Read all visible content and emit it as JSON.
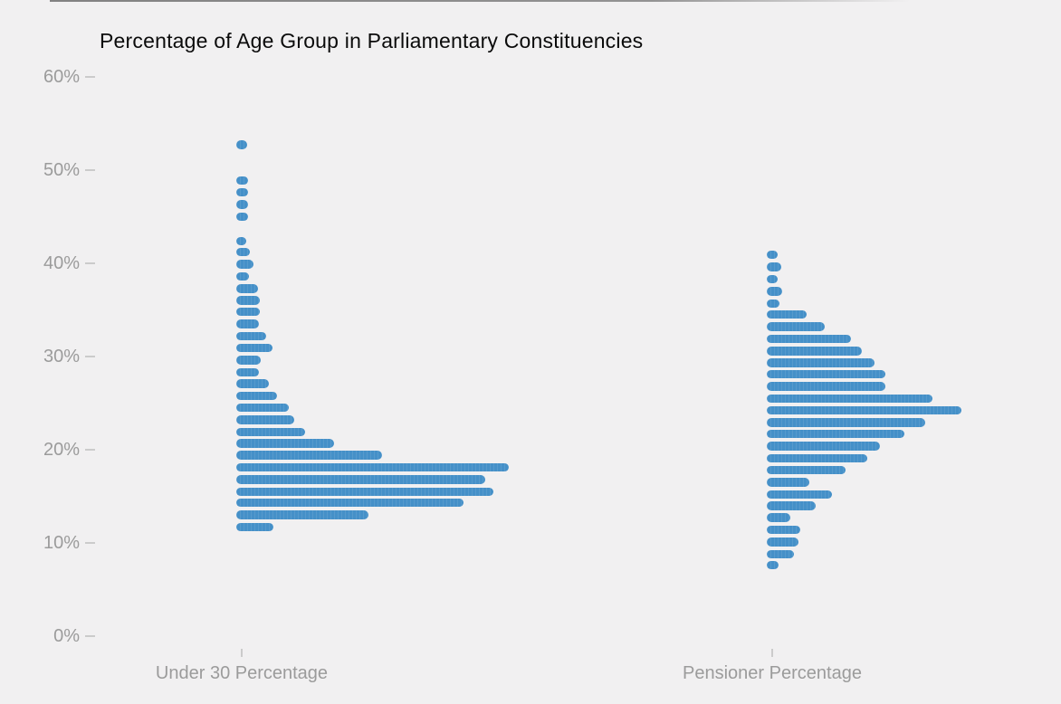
{
  "chart_data": {
    "type": "bar",
    "subtype": "one-sided horizontal tally histogram (distribution per column)",
    "title": "Percentage of Age Group in Parliamentary Constituencies",
    "ylabel": "",
    "xlabel": "",
    "ylim": [
      0,
      60
    ],
    "y_tick_labels": [
      "0%",
      "10%",
      "20%",
      "30%",
      "40%",
      "50%",
      "60%"
    ],
    "y_tick_values": [
      0,
      10,
      20,
      30,
      40,
      50,
      60
    ],
    "grid": false,
    "legend": "none",
    "bar_color": "#4590c8",
    "length_units": "relative bar length in screen px (count scale not labeled in chart)",
    "series": [
      {
        "name": "Under 30 Percentage",
        "bins": [
          {
            "pct": 52.7,
            "len": 12
          },
          {
            "pct": 48.9,
            "len": 13
          },
          {
            "pct": 47.6,
            "len": 13
          },
          {
            "pct": 46.3,
            "len": 13
          },
          {
            "pct": 45.0,
            "len": 13
          },
          {
            "pct": 42.4,
            "len": 11
          },
          {
            "pct": 41.2,
            "len": 15
          },
          {
            "pct": 39.9,
            "len": 19
          },
          {
            "pct": 38.6,
            "len": 14
          },
          {
            "pct": 37.3,
            "len": 24
          },
          {
            "pct": 36.0,
            "len": 26
          },
          {
            "pct": 34.8,
            "len": 26
          },
          {
            "pct": 33.5,
            "len": 25
          },
          {
            "pct": 32.2,
            "len": 33
          },
          {
            "pct": 30.9,
            "len": 40
          },
          {
            "pct": 29.6,
            "len": 27
          },
          {
            "pct": 28.3,
            "len": 25
          },
          {
            "pct": 27.1,
            "len": 36
          },
          {
            "pct": 25.8,
            "len": 45
          },
          {
            "pct": 24.5,
            "len": 58
          },
          {
            "pct": 23.2,
            "len": 64
          },
          {
            "pct": 21.9,
            "len": 76
          },
          {
            "pct": 20.7,
            "len": 108
          },
          {
            "pct": 19.4,
            "len": 161
          },
          {
            "pct": 18.1,
            "len": 301
          },
          {
            "pct": 16.8,
            "len": 275
          },
          {
            "pct": 15.5,
            "len": 284
          },
          {
            "pct": 14.3,
            "len": 251
          },
          {
            "pct": 13.0,
            "len": 146
          },
          {
            "pct": 11.7,
            "len": 41
          }
        ]
      },
      {
        "name": "Pensioner Percentage",
        "bins": [
          {
            "pct": 40.9,
            "len": 12
          },
          {
            "pct": 39.6,
            "len": 16
          },
          {
            "pct": 38.3,
            "len": 12
          },
          {
            "pct": 37.0,
            "len": 17
          },
          {
            "pct": 35.7,
            "len": 14
          },
          {
            "pct": 34.5,
            "len": 44
          },
          {
            "pct": 33.2,
            "len": 64
          },
          {
            "pct": 31.9,
            "len": 93
          },
          {
            "pct": 30.6,
            "len": 105
          },
          {
            "pct": 29.3,
            "len": 119
          },
          {
            "pct": 28.1,
            "len": 131
          },
          {
            "pct": 26.8,
            "len": 131
          },
          {
            "pct": 25.5,
            "len": 183
          },
          {
            "pct": 24.2,
            "len": 215
          },
          {
            "pct": 22.9,
            "len": 175
          },
          {
            "pct": 21.7,
            "len": 152
          },
          {
            "pct": 20.4,
            "len": 125
          },
          {
            "pct": 19.1,
            "len": 111
          },
          {
            "pct": 17.8,
            "len": 87
          },
          {
            "pct": 16.5,
            "len": 47
          },
          {
            "pct": 15.2,
            "len": 72
          },
          {
            "pct": 14.0,
            "len": 54
          },
          {
            "pct": 12.7,
            "len": 26
          },
          {
            "pct": 11.4,
            "len": 37
          },
          {
            "pct": 10.1,
            "len": 35
          },
          {
            "pct": 8.8,
            "len": 30
          },
          {
            "pct": 7.6,
            "len": 13
          }
        ]
      }
    ]
  }
}
